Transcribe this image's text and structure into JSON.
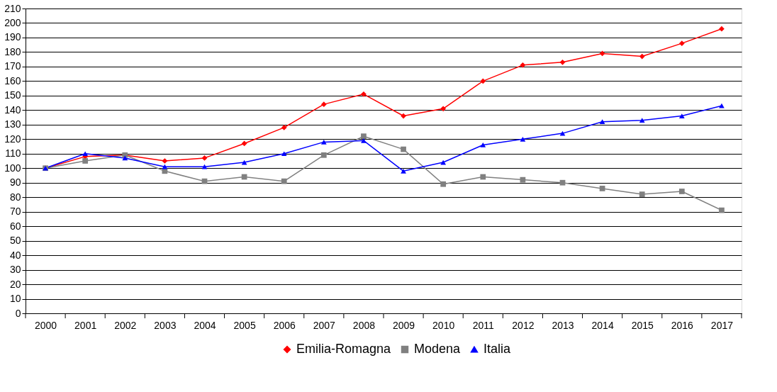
{
  "chart_data": {
    "type": "line",
    "categories": [
      "2000",
      "2001",
      "2002",
      "2003",
      "2004",
      "2005",
      "2006",
      "2007",
      "2008",
      "2009",
      "2010",
      "2011",
      "2012",
      "2013",
      "2014",
      "2015",
      "2016",
      "2017"
    ],
    "series": [
      {
        "name": "Emilia-Romagna",
        "color": "#ff0000",
        "marker": "diamond",
        "values": [
          100,
          108,
          109,
          105,
          107,
          117,
          128,
          144,
          151,
          136,
          141,
          160,
          171,
          173,
          179,
          177,
          186,
          196
        ]
      },
      {
        "name": "Modena",
        "color": "#808080",
        "marker": "square",
        "values": [
          100,
          105,
          109,
          98,
          91,
          94,
          91,
          109,
          122,
          113,
          89,
          94,
          92,
          90,
          86,
          82,
          84,
          71
        ]
      },
      {
        "name": "Italia",
        "color": "#0000ff",
        "marker": "triangle",
        "values": [
          100,
          110,
          107,
          101,
          101,
          104,
          110,
          118,
          119,
          98,
          104,
          116,
          120,
          124,
          132,
          133,
          136,
          143
        ]
      }
    ],
    "ylim": [
      0,
      210
    ],
    "yticks": [
      0,
      10,
      20,
      30,
      40,
      50,
      60,
      70,
      80,
      90,
      100,
      110,
      120,
      130,
      140,
      150,
      160,
      170,
      180,
      190,
      200,
      210
    ],
    "grid": "y",
    "legend": "bottom",
    "line_style": "solid"
  }
}
